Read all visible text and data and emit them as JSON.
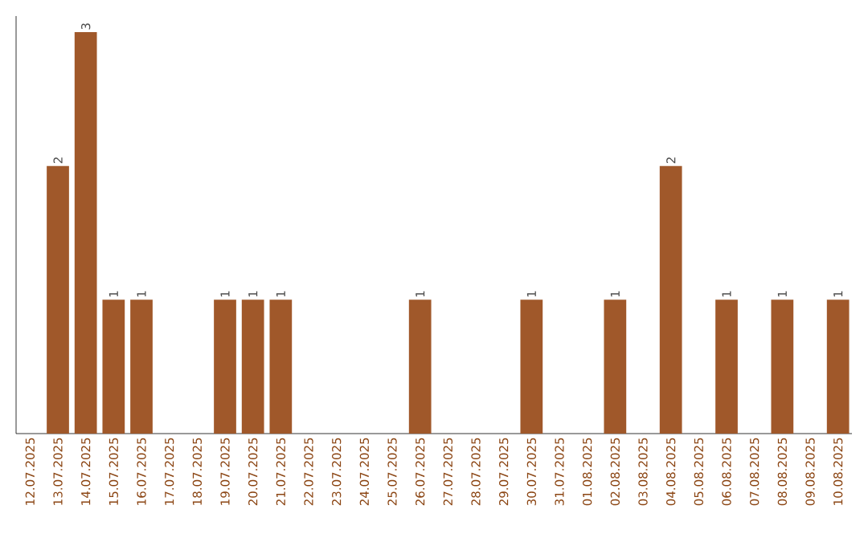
{
  "chart_data": {
    "type": "bar",
    "categories": [
      "12.07.2025",
      "13.07.2025",
      "14.07.2025",
      "15.07.2025",
      "16.07.2025",
      "17.07.2025",
      "18.07.2025",
      "19.07.2025",
      "20.07.2025",
      "21.07.2025",
      "22.07.2025",
      "23.07.2025",
      "24.07.2025",
      "25.07.2025",
      "26.07.2025",
      "27.07.2025",
      "28.07.2025",
      "29.07.2025",
      "30.07.2025",
      "31.07.2025",
      "01.08.2025",
      "02.08.2025",
      "03.08.2025",
      "04.08.2025",
      "05.08.2025",
      "06.08.2025",
      "07.08.2025",
      "08.08.2025",
      "09.08.2025",
      "10.08.2025"
    ],
    "values": [
      0,
      2,
      3,
      1,
      1,
      0,
      0,
      1,
      1,
      1,
      0,
      0,
      0,
      0,
      1,
      0,
      0,
      0,
      1,
      0,
      0,
      1,
      0,
      2,
      0,
      1,
      0,
      1,
      0,
      1
    ],
    "value_labels": [
      null,
      "2",
      "3",
      "1",
      "1",
      null,
      null,
      "1",
      "1",
      "1",
      null,
      null,
      null,
      null,
      "1",
      null,
      null,
      null,
      "1",
      null,
      null,
      "1",
      null,
      "2",
      null,
      "1",
      null,
      "1",
      null,
      "1"
    ],
    "color": "#a0582a",
    "tick_labels": "x",
    "grid": false
  }
}
